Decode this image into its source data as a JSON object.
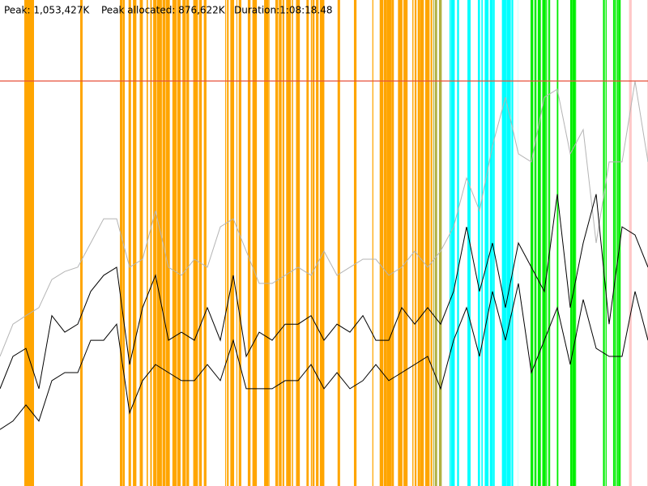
{
  "header": {
    "peak": "Peak: 1,053,427K",
    "peak_allocated": "Peak allocated: 876,622K",
    "duration": "Duration:1:08:18.48"
  },
  "chart_data": {
    "type": "line",
    "ylim": [
      0,
      1264112
    ],
    "peak_line": 1053427,
    "peak_line_color": "#e8513a",
    "series": [
      {
        "color": "#b4b4b4",
        "values": [
          337000,
          421000,
          443000,
          464000,
          537000,
          558000,
          569000,
          632000,
          695000,
          695000,
          569000,
          590000,
          716000,
          569000,
          548000,
          590000,
          569000,
          674000,
          695000,
          611000,
          527000,
          527000,
          548000,
          569000,
          548000,
          611000,
          548000,
          569000,
          590000,
          590000,
          548000,
          569000,
          611000,
          569000,
          611000,
          674000,
          801000,
          716000,
          885000,
          1011000,
          864000,
          843000,
          1011000,
          1032000,
          864000,
          927000,
          632000,
          843000,
          843000,
          1053000,
          843000
        ]
      },
      {
        "color": "#000000",
        "values": [
          253000,
          337000,
          358000,
          253000,
          443000,
          400000,
          421000,
          506000,
          548000,
          569000,
          316000,
          464000,
          548000,
          379000,
          400000,
          379000,
          464000,
          379000,
          548000,
          337000,
          400000,
          379000,
          421000,
          421000,
          443000,
          379000,
          421000,
          400000,
          443000,
          379000,
          379000,
          464000,
          421000,
          464000,
          421000,
          506000,
          674000,
          506000,
          632000,
          464000,
          632000,
          569000,
          506000,
          759000,
          464000,
          632000,
          759000,
          421000,
          674000,
          653000,
          569000
        ]
      },
      {
        "color": "#000000",
        "values": [
          147000,
          169000,
          211000,
          169000,
          274000,
          295000,
          295000,
          379000,
          379000,
          421000,
          190000,
          274000,
          316000,
          295000,
          274000,
          274000,
          316000,
          274000,
          379000,
          253000,
          253000,
          253000,
          274000,
          274000,
          316000,
          253000,
          295000,
          253000,
          274000,
          316000,
          274000,
          295000,
          316000,
          337000,
          253000,
          379000,
          464000,
          337000,
          506000,
          379000,
          527000,
          295000,
          379000,
          464000,
          316000,
          485000,
          358000,
          337000,
          337000,
          506000,
          379000
        ]
      }
    ]
  }
}
